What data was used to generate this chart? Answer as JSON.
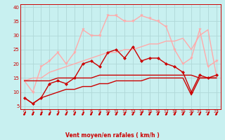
{
  "xlabel": "Vent moyen/en rafales ( km/h )",
  "xlim": [
    -0.5,
    23.5
  ],
  "ylim": [
    4,
    41
  ],
  "yticks": [
    5,
    10,
    15,
    20,
    25,
    30,
    35,
    40
  ],
  "xticks": [
    0,
    1,
    2,
    3,
    4,
    5,
    6,
    7,
    8,
    9,
    10,
    11,
    12,
    13,
    14,
    15,
    16,
    17,
    18,
    19,
    20,
    21,
    22,
    23
  ],
  "bg_color": "#c8f0f0",
  "grid_color": "#b0d8d8",
  "lines": [
    {
      "x": [
        0,
        1,
        2,
        3,
        4,
        5,
        6,
        7,
        8,
        9,
        10,
        11,
        12,
        13,
        14,
        15,
        16,
        17,
        18,
        19,
        20,
        21,
        22,
        23
      ],
      "y": [
        14,
        10,
        19,
        21,
        24,
        20,
        24,
        32,
        30,
        30,
        37,
        37,
        35,
        35,
        37,
        36,
        35,
        33,
        25,
        20,
        22,
        32,
        19,
        21
      ],
      "color": "#ffaaaa",
      "lw": 1.0,
      "marker": "v",
      "ms": 3.0,
      "zorder": 3
    },
    {
      "x": [
        0,
        1,
        2,
        3,
        4,
        5,
        6,
        7,
        8,
        9,
        10,
        11,
        12,
        13,
        14,
        15,
        16,
        17,
        18,
        19,
        20,
        21,
        22,
        23
      ],
      "y": [
        8,
        6,
        8,
        13,
        14,
        13,
        15,
        20,
        21,
        19,
        24,
        25,
        22,
        26,
        21,
        22,
        22,
        20,
        19,
        17,
        10,
        16,
        15,
        16
      ],
      "color": "#cc0000",
      "lw": 1.0,
      "marker": "D",
      "ms": 2.5,
      "zorder": 5
    },
    {
      "x": [
        0,
        1,
        2,
        3,
        4,
        5,
        6,
        7,
        8,
        9,
        10,
        11,
        12,
        13,
        14,
        15,
        16,
        17,
        18,
        19,
        20,
        21,
        22,
        23
      ],
      "y": [
        14,
        15,
        15,
        17,
        18,
        19,
        20,
        21,
        22,
        23,
        24,
        24,
        25,
        25,
        26,
        27,
        27,
        28,
        28,
        29,
        25,
        30,
        32,
        16
      ],
      "color": "#ffaaaa",
      "lw": 1.0,
      "marker": null,
      "ms": 0,
      "zorder": 2
    },
    {
      "x": [
        0,
        1,
        2,
        3,
        4,
        5,
        6,
        7,
        8,
        9,
        10,
        11,
        12,
        13,
        14,
        15,
        16,
        17,
        18,
        19,
        20,
        21,
        22,
        23
      ],
      "y": [
        14,
        14,
        14,
        14,
        15,
        15,
        15,
        15,
        15,
        16,
        16,
        16,
        16,
        16,
        16,
        16,
        16,
        16,
        16,
        16,
        16,
        15,
        15,
        15
      ],
      "color": "#cc0000",
      "lw": 1.0,
      "marker": null,
      "ms": 0,
      "zorder": 3
    },
    {
      "x": [
        0,
        1,
        2,
        3,
        4,
        5,
        6,
        7,
        8,
        9,
        10,
        11,
        12,
        13,
        14,
        15,
        16,
        17,
        18,
        19,
        20,
        21,
        22,
        23
      ],
      "y": [
        8,
        6,
        8,
        9,
        10,
        11,
        11,
        12,
        12,
        13,
        13,
        14,
        14,
        14,
        14,
        15,
        15,
        15,
        15,
        15,
        9,
        15,
        15,
        15
      ],
      "color": "#cc0000",
      "lw": 1.0,
      "marker": null,
      "ms": 0,
      "zorder": 2
    }
  ],
  "arrow_color": "#cc0000"
}
